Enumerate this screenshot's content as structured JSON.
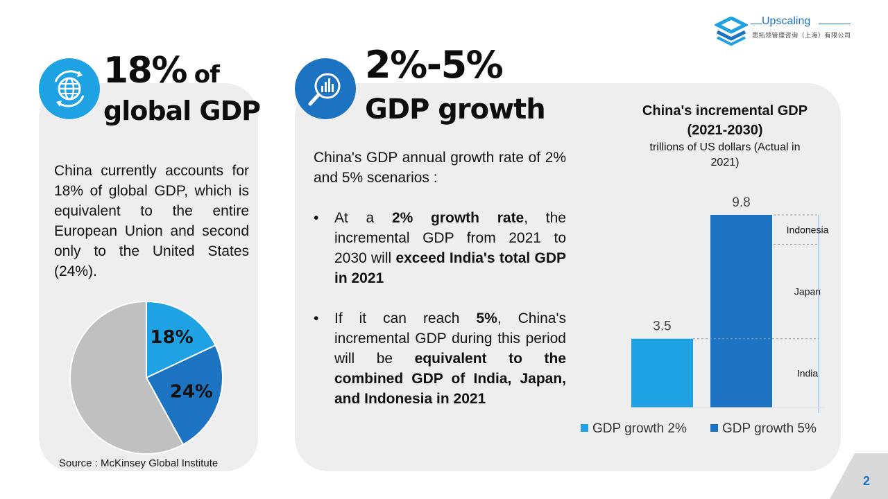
{
  "brand": {
    "name": "Upscaling",
    "subtitle": "思拓领管理咨询（上海）有限公司",
    "accent": "#1b73c2",
    "light_accent": "#1ea2e3"
  },
  "left": {
    "headline_big": "18%",
    "headline_of": " of",
    "headline_line2": "global GDP",
    "icon": "globe-refresh-icon",
    "paragraph": "China currently accounts for 18% of global GDP, which is equivalent to the entire European Union and second only to the United States (24%).",
    "source": "Source : McKinsey Global Institute"
  },
  "right": {
    "headline_big": "2%-5%",
    "headline_line2": "GDP growth",
    "icon": "chart-magnifier-icon",
    "intro": "China's GDP annual growth rate of 2% and 5% scenarios :",
    "bullet1": {
      "p1": "At a ",
      "b1": "2% growth rate",
      "p2": ", the incremental GDP from 2021 to 2030 will ",
      "b2": "exceed India's total GDP in 2021"
    },
    "bullet2": {
      "p1": "If it can reach ",
      "b1": "5%",
      "p2": ", China's incremental GDP during this period will be ",
      "b2": "equivalent to the combined GDP of India, Japan, and Indonesia in 2021"
    }
  },
  "chart_data": [
    {
      "type": "pie",
      "slices": [
        {
          "label": "18%",
          "value": 18,
          "color": "#1ea2e3"
        },
        {
          "label": "24%",
          "value": 24,
          "color": "#1b73c2"
        },
        {
          "label": "",
          "value": 58,
          "color": "#c0c0c0"
        }
      ]
    },
    {
      "type": "bar",
      "title": "China's incremental GDP (2021-2030)",
      "subtitle": "trillions of US dollars (Actual in 2021)",
      "categories": [
        "GDP growth 2%",
        "GDP growth 5%"
      ],
      "values": [
        3.5,
        9.8
      ],
      "value_labels": [
        "3.5",
        "9.8"
      ],
      "colors": [
        "#1ea2e3",
        "#1b73c2"
      ],
      "ylim": [
        0,
        9.8
      ],
      "reference_segments": [
        {
          "label": "India",
          "from": 0,
          "to": 3.5
        },
        {
          "label": "Japan",
          "from": 3.5,
          "to": 8.3
        },
        {
          "label": "Indonesia",
          "from": 8.3,
          "to": 9.8
        }
      ],
      "legend": [
        "GDP growth 2%",
        "GDP growth 5%"
      ]
    }
  ],
  "page": {
    "number": "2"
  }
}
